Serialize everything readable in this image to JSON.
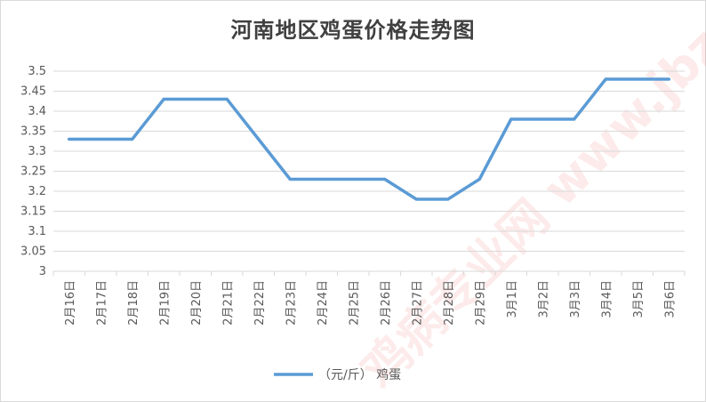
{
  "chart_data": {
    "type": "line",
    "title": "河南地区鸡蛋价格走势图",
    "categories": [
      "2月16日",
      "2月17日",
      "2月18日",
      "2月19日",
      "2月20日",
      "2月21日",
      "2月22日",
      "2月23日",
      "2月24日",
      "2月25日",
      "2月26日",
      "2月27日",
      "2月28日",
      "2月29日",
      "3月1日",
      "3月2日",
      "3月3日",
      "3月4日",
      "3月5日",
      "3月6日"
    ],
    "series": [
      {
        "name": "（元/斤） 鸡蛋",
        "values": [
          3.33,
          3.33,
          3.33,
          3.43,
          3.43,
          3.43,
          3.33,
          3.23,
          3.23,
          3.23,
          3.23,
          3.18,
          3.18,
          3.23,
          3.38,
          3.38,
          3.38,
          3.48,
          3.48,
          3.48
        ]
      }
    ],
    "yticks": [
      "3",
      "3.05",
      "3.1",
      "3.15",
      "3.2",
      "3.25",
      "3.3",
      "3.35",
      "3.4",
      "3.45",
      "3.5"
    ],
    "ylim": [
      3,
      3.5
    ],
    "grid": true,
    "legend_position": "bottom",
    "line_color": "#5b9bd5",
    "grid_color": "#d9d9d9",
    "watermark": "鸡病专业网 www.jbzyw.com"
  }
}
